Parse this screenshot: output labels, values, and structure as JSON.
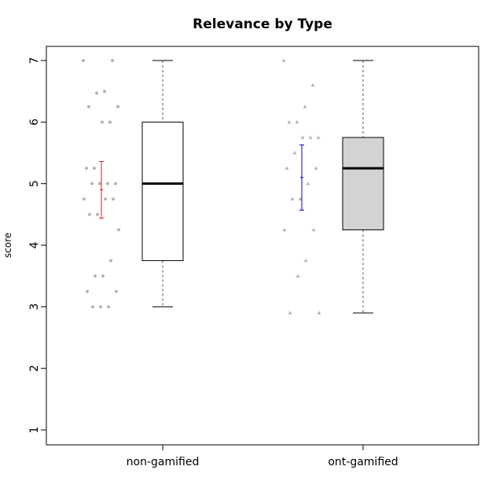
{
  "chart_data": {
    "type": "box",
    "title": "Relevance by Type",
    "ylabel": "score",
    "xlabel": "",
    "ylim": [
      1,
      7
    ],
    "yticks": [
      "1",
      "2",
      "3",
      "4",
      "5",
      "6",
      "7"
    ],
    "categories": [
      "non-gamified",
      "ont-gamified"
    ],
    "grid": false,
    "boxes": [
      {
        "category": "non-gamified",
        "min": 3,
        "q1": 3.75,
        "median": 5,
        "q3": 6,
        "max": 7,
        "fill": "#ffffff",
        "error_bar": {
          "mean": 4.9,
          "lower": 4.44,
          "upper": 5.36,
          "color": "#e41a1c"
        },
        "points": [
          7,
          7,
          6.5,
          6.47,
          6.25,
          6.25,
          6,
          6,
          5.25,
          5.25,
          5,
          5,
          5,
          5,
          4.75,
          4.75,
          4.75,
          4.5,
          4.5,
          4.25,
          3.75,
          3.5,
          3.5,
          3.25,
          3.25,
          3,
          3,
          3
        ],
        "point_marker": "circle"
      },
      {
        "category": "ont-gamified",
        "min": 2.9,
        "q1": 4.25,
        "median": 5.25,
        "q3": 5.75,
        "max": 7,
        "fill": "#d3d3d3",
        "error_bar": {
          "mean": 5.1,
          "lower": 4.57,
          "upper": 5.63,
          "color": "#0000cd"
        },
        "points": [
          7,
          6.6,
          6.25,
          6,
          6,
          5.75,
          5.75,
          5.75,
          5.5,
          5.25,
          5.25,
          5,
          4.75,
          4.75,
          4.25,
          4.25,
          3.75,
          3.5,
          2.9,
          2.9
        ],
        "point_marker": "triangle"
      }
    ],
    "colors": {
      "points": "#b3b3b3",
      "median": "#000000",
      "whisker": "#555555"
    }
  }
}
